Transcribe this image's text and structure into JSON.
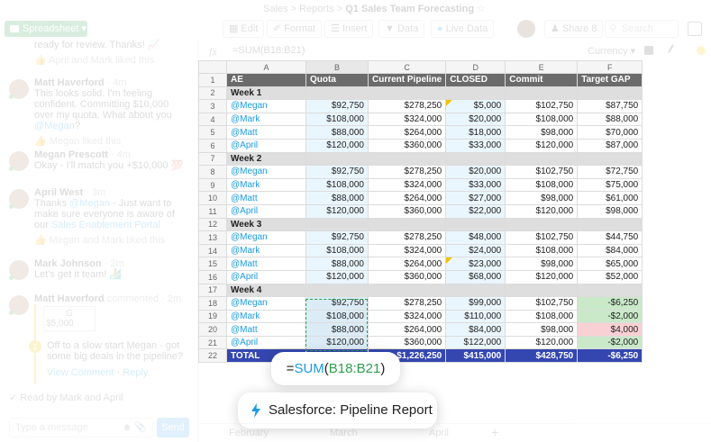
{
  "topbar": {
    "breadcrumb": [
      "Sales",
      "Reports",
      "Q1 Sales Team Forecasting"
    ],
    "separator": ">",
    "view_switcher": "Spreadsheet",
    "buttons": [
      {
        "label": "Edit",
        "icon": "edit-icon"
      },
      {
        "label": "Format",
        "icon": "paint-icon"
      },
      {
        "label": "Insert",
        "icon": "insert-icon"
      },
      {
        "label": "Data",
        "icon": "filter-icon"
      },
      {
        "label": "Live Data",
        "icon": "live-data-icon"
      }
    ],
    "share_label": "Share",
    "share_count": "8",
    "search_placeholder": "Search"
  },
  "formula_bar": {
    "fx_label": "fx",
    "formula": "=SUM(B18:B21)",
    "format": "Currency"
  },
  "chat": {
    "messages": [
      {
        "name": "",
        "time": "",
        "text": "ready for review. Thanks! 📈",
        "liked": "April and Mark liked this"
      },
      {
        "name": "Matt Haverford",
        "time": "· 4m",
        "text_before": "This looks solid. I'm feeling confident. Committing $10,000 over my quota. What about you ",
        "mention": "@Megan",
        "text_after": "?",
        "liked": "Megan liked this"
      },
      {
        "name": "Megan Prescott",
        "time": "· 4m",
        "text": "Okay - I'll match you +$10,000 💯"
      },
      {
        "name": "April West",
        "time": "· 3m",
        "text_before": "Thanks ",
        "mention": "@Megan",
        "text_after": " - Just want to make sure everyone is aware of our ",
        "link": "Sales Enablement Portal",
        "liked": "Megan and Mark liked this"
      },
      {
        "name": "Mark Johnson",
        "time": "· 2m",
        "text": "Let's get it team! 🏄"
      },
      {
        "name": "Matt Haverford",
        "time": "commented · 2m",
        "card_col": "G",
        "card_val": "$5,000",
        "thread_count": "1",
        "comment": "Off to a slow start Megan - got some big deals in the pipeline?",
        "view_comment": "View Comment",
        "reply": "Reply"
      }
    ],
    "read_by": "Read by Mark and April",
    "input_placeholder": "Type a message",
    "send_label": "Send"
  },
  "grid": {
    "col_letters": [
      "A",
      "B",
      "C",
      "D",
      "E",
      "F"
    ],
    "header": [
      "AE",
      "Quota",
      "Current Pipeline",
      "CLOSED",
      "Commit",
      "Target GAP"
    ],
    "rows": [
      {
        "n": "2",
        "type": "week",
        "cells": [
          "Week 1",
          "",
          "",
          "",
          "",
          ""
        ]
      },
      {
        "n": "3",
        "type": "data",
        "cells": [
          "@Megan",
          "$92,750",
          "$278,250",
          "$5,000",
          "$102,750",
          "$87,750"
        ]
      },
      {
        "n": "4",
        "type": "data",
        "cells": [
          "@Mark",
          "$108,000",
          "$324,000",
          "$20,000",
          "$108,000",
          "$88,000"
        ]
      },
      {
        "n": "5",
        "type": "data",
        "cells": [
          "@Matt",
          "$88,000",
          "$264,000",
          "$18,000",
          "$98,000",
          "$70,000"
        ]
      },
      {
        "n": "6",
        "type": "data",
        "cells": [
          "@April",
          "$120,000",
          "$360,000",
          "$33,000",
          "$120,000",
          "$87,000"
        ]
      },
      {
        "n": "7",
        "type": "week",
        "cells": [
          "Week 2",
          "",
          "",
          "",
          "",
          ""
        ]
      },
      {
        "n": "8",
        "type": "data",
        "cells": [
          "@Megan",
          "$92,750",
          "$278,250",
          "$20,000",
          "$102,750",
          "$72,750"
        ]
      },
      {
        "n": "9",
        "type": "data",
        "cells": [
          "@Mark",
          "$108,000",
          "$324,000",
          "$33,000",
          "$108,000",
          "$75,000"
        ]
      },
      {
        "n": "10",
        "type": "data",
        "cells": [
          "@Matt",
          "$88,000",
          "$264,000",
          "$27,000",
          "$98,000",
          "$61,000"
        ]
      },
      {
        "n": "11",
        "type": "data",
        "cells": [
          "@April",
          "$120,000",
          "$360,000",
          "$22,000",
          "$120,000",
          "$98,000"
        ]
      },
      {
        "n": "12",
        "type": "week",
        "cells": [
          "Week 3",
          "",
          "",
          "",
          "",
          ""
        ]
      },
      {
        "n": "13",
        "type": "data",
        "cells": [
          "@Megan",
          "$92,750",
          "$278,250",
          "$48,000",
          "$102,750",
          "$44,750"
        ]
      },
      {
        "n": "14",
        "type": "data",
        "cells": [
          "@Mark",
          "$108,000",
          "$324,000",
          "$24,000",
          "$108,000",
          "$84,000"
        ]
      },
      {
        "n": "15",
        "type": "data",
        "cells": [
          "@Matt",
          "$88,000",
          "$264,000",
          "$23,000",
          "$98,000",
          "$65,000"
        ]
      },
      {
        "n": "16",
        "type": "data",
        "cells": [
          "@April",
          "$120,000",
          "$360,000",
          "$68,000",
          "$120,000",
          "$52,000"
        ]
      },
      {
        "n": "17",
        "type": "week",
        "cells": [
          "Week 4",
          "",
          "",
          "",
          "",
          ""
        ]
      },
      {
        "n": "18",
        "type": "data",
        "cells": [
          "@Megan",
          "$92,750",
          "$278,250",
          "$99,000",
          "$102,750",
          "-$6,250"
        ]
      },
      {
        "n": "19",
        "type": "data",
        "cells": [
          "@Mark",
          "$108,000",
          "$324,000",
          "$110,000",
          "$108,000",
          "-$2,000"
        ]
      },
      {
        "n": "20",
        "type": "data",
        "cells": [
          "@Matt",
          "$88,000",
          "$264,000",
          "$84,000",
          "$98,000",
          "$4,000"
        ]
      },
      {
        "n": "21",
        "type": "data",
        "cells": [
          "@April",
          "$120,000",
          "$360,000",
          "$122,000",
          "$120,000",
          "-$2,000"
        ]
      },
      {
        "n": "22",
        "type": "total",
        "cells": [
          "TOTAL",
          "",
          "$1,226,250",
          "$415,000",
          "$428,750",
          "-$6,250"
        ]
      }
    ]
  },
  "overlays": {
    "formula_eq": "=",
    "formula_fn": "SUM",
    "formula_open": "(",
    "formula_ref": "B18:B21",
    "formula_close": ")",
    "source_label": "Salesforce: Pipeline Report"
  },
  "sheet_tabs": [
    "February",
    "March",
    "April"
  ],
  "colors": {
    "header_bg": "#6b6b6b",
    "total_bg": "#3447b0",
    "mention": "#1a9be6",
    "positive_gap": "#c9e9c9",
    "negative_gap": "#f9d0d3",
    "accent_green": "#2e9e4f",
    "flag_yellow": "#f2c200"
  }
}
